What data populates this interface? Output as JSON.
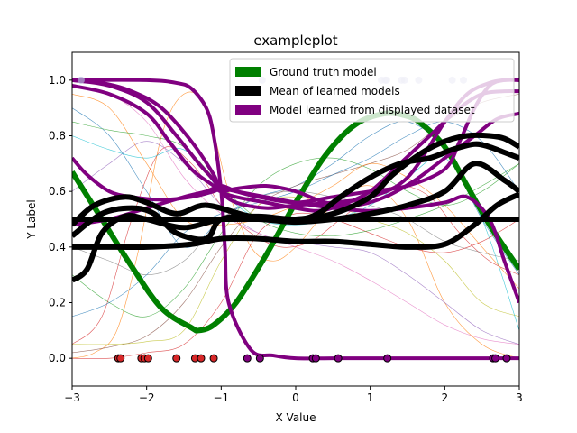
{
  "chart_data": {
    "type": "line",
    "title": "exampleplot",
    "xlabel": "X Value",
    "ylabel": "Y Label",
    "xlim": [
      -3,
      3
    ],
    "ylim": [
      -0.1,
      1.1
    ],
    "x_ticks": [
      -3,
      -2,
      -1,
      0,
      1,
      2,
      3
    ],
    "y_ticks": [
      0.0,
      0.2,
      0.4,
      0.6,
      0.8,
      1.0
    ],
    "x_tick_labels": [
      "−3",
      "−2",
      "−1",
      "0",
      "1",
      "2",
      "3"
    ],
    "y_tick_labels": [
      "0.0",
      "0.2",
      "0.4",
      "0.6",
      "0.8",
      "1.0"
    ],
    "grid": false,
    "legend": {
      "placement": "top-right",
      "entries": [
        {
          "label": "Ground truth model",
          "color": "#008000"
        },
        {
          "label": "Mean of learned models",
          "color": "#000000"
        },
        {
          "label": "Model learned from displayed dataset",
          "color": "#800080"
        }
      ]
    },
    "ground_truth_series": {
      "color": "#008000",
      "x": [
        -3.0,
        -2.6,
        -2.2,
        -1.8,
        -1.4,
        -1.3,
        -1.1,
        -0.8,
        -0.4,
        0.0,
        0.4,
        0.8,
        1.2,
        1.5,
        1.7,
        2.0,
        2.3,
        2.6,
        3.0
      ],
      "y": [
        0.67,
        0.5,
        0.33,
        0.18,
        0.11,
        0.1,
        0.12,
        0.2,
        0.37,
        0.56,
        0.73,
        0.84,
        0.88,
        0.87,
        0.84,
        0.76,
        0.62,
        0.48,
        0.32
      ]
    },
    "mean_series": [
      {
        "color": "#000000",
        "x": [
          -3.0,
          -2.0,
          -1.0,
          0.0,
          1.0,
          2.0,
          3.0
        ],
        "y": [
          0.5,
          0.5,
          0.5,
          0.5,
          0.5,
          0.5,
          0.5
        ]
      },
      {
        "color": "#000000",
        "x": [
          -3.0,
          -2.8,
          -2.5,
          -2.0,
          -1.4,
          -1.0,
          -0.5,
          0.0,
          0.5,
          1.0,
          1.5,
          2.0,
          2.4,
          2.7,
          3.0
        ],
        "y": [
          0.4,
          0.4,
          0.4,
          0.4,
          0.41,
          0.43,
          0.43,
          0.42,
          0.42,
          0.41,
          0.4,
          0.41,
          0.48,
          0.55,
          0.59
        ]
      },
      {
        "color": "#000000",
        "x": [
          -3.0,
          -2.8,
          -2.6,
          -2.3,
          -2.0,
          -1.5,
          -1.0,
          -0.5,
          0.0,
          0.5,
          1.0,
          1.5,
          2.0,
          2.4,
          2.8,
          3.0
        ],
        "y": [
          0.28,
          0.32,
          0.45,
          0.51,
          0.5,
          0.47,
          0.5,
          0.5,
          0.49,
          0.5,
          0.52,
          0.55,
          0.6,
          0.7,
          0.64,
          0.6
        ]
      },
      {
        "color": "#000000",
        "x": [
          -3.0,
          -2.7,
          -2.3,
          -2.0,
          -1.6,
          -1.2,
          -0.6,
          0.0,
          0.3,
          0.6,
          1.0,
          1.4,
          1.8,
          2.1,
          2.4,
          2.6,
          2.8,
          3.0
        ],
        "y": [
          0.48,
          0.55,
          0.58,
          0.56,
          0.52,
          0.55,
          0.51,
          0.5,
          0.52,
          0.58,
          0.65,
          0.7,
          0.72,
          0.75,
          0.77,
          0.76,
          0.74,
          0.72
        ]
      },
      {
        "color": "#000000",
        "x": [
          -3.0,
          -2.6,
          -2.2,
          -1.9,
          -1.6,
          -1.2,
          -1.0,
          -0.5,
          0.0,
          0.5,
          1.0,
          1.3,
          1.7,
          2.0,
          2.3,
          2.6,
          2.8,
          3.0
        ],
        "y": [
          0.44,
          0.52,
          0.54,
          0.52,
          0.45,
          0.43,
          0.5,
          0.51,
          0.5,
          0.52,
          0.58,
          0.66,
          0.74,
          0.78,
          0.8,
          0.8,
          0.79,
          0.76
        ]
      }
    ],
    "learned_series": [
      {
        "color": "#800080",
        "x": [
          -3.0,
          -2.0,
          -1.6,
          -1.4,
          -1.2,
          -1.1,
          -1.0,
          -0.95,
          -0.9,
          -0.6,
          -0.3,
          0.0,
          0.5,
          1.0,
          2.0,
          3.0
        ],
        "y": [
          1.0,
          1.0,
          0.99,
          0.97,
          0.9,
          0.8,
          0.6,
          0.4,
          0.2,
          0.03,
          0.01,
          0.0,
          0.0,
          0.0,
          0.0,
          0.0
        ]
      },
      {
        "color": "#800080",
        "x": [
          -3.0,
          -2.5,
          -2.0,
          -1.7,
          -1.4,
          -1.1,
          -1.0,
          -0.8,
          -0.4,
          0.0,
          0.4,
          0.8,
          1.2,
          1.6,
          2.0,
          2.4,
          2.7,
          3.0
        ],
        "y": [
          0.98,
          0.95,
          0.88,
          0.78,
          0.68,
          0.62,
          0.6,
          0.61,
          0.62,
          0.6,
          0.56,
          0.55,
          0.58,
          0.64,
          0.72,
          0.8,
          0.86,
          0.88
        ]
      },
      {
        "color": "#800080",
        "x": [
          -3.0,
          -2.5,
          -2.0,
          -1.6,
          -1.3,
          -1.1,
          -1.0,
          -0.8,
          -0.4,
          0.0,
          0.3,
          0.6,
          1.0,
          1.4,
          1.8,
          2.2,
          2.5,
          2.8,
          3.0
        ],
        "y": [
          1.0,
          0.98,
          0.92,
          0.8,
          0.7,
          0.64,
          0.6,
          0.58,
          0.56,
          0.54,
          0.53,
          0.55,
          0.6,
          0.7,
          0.8,
          0.9,
          0.95,
          0.96,
          0.96
        ]
      },
      {
        "color": "#800080",
        "x": [
          -3.0,
          -2.6,
          -2.2,
          -1.8,
          -1.4,
          -1.1,
          -1.0,
          -0.8,
          -0.4,
          0.0,
          0.5,
          1.0,
          1.5,
          2.0,
          2.3,
          2.6,
          2.8,
          3.0
        ],
        "y": [
          1.0,
          0.99,
          0.96,
          0.9,
          0.78,
          0.66,
          0.6,
          0.56,
          0.54,
          0.55,
          0.56,
          0.58,
          0.65,
          0.85,
          0.95,
          0.99,
          1.0,
          1.0
        ]
      },
      {
        "color": "#800080",
        "x": [
          -3.0,
          -2.8,
          -2.5,
          -2.2,
          -1.8,
          -1.4,
          -1.1,
          -1.0,
          -0.8,
          -0.4,
          0.0,
          0.5,
          1.0,
          1.5,
          2.0,
          2.3,
          2.6,
          2.8,
          3.0
        ],
        "y": [
          0.72,
          0.66,
          0.6,
          0.58,
          0.57,
          0.58,
          0.6,
          0.61,
          0.6,
          0.58,
          0.56,
          0.54,
          0.53,
          0.54,
          0.56,
          0.58,
          0.5,
          0.35,
          0.2
        ]
      },
      {
        "color": "#800080",
        "x": [
          -3.0,
          -2.5,
          -2.0,
          -1.5,
          -1.2,
          -1.0,
          -0.8,
          -0.5,
          0.0,
          0.5,
          1.0,
          1.5,
          2.0,
          2.2,
          2.4,
          2.6,
          2.8,
          3.0
        ],
        "y": [
          0.48,
          0.5,
          0.54,
          0.58,
          0.6,
          0.62,
          0.6,
          0.58,
          0.56,
          0.58,
          0.6,
          0.62,
          0.68,
          0.78,
          0.9,
          0.98,
          1.0,
          1.0
        ]
      }
    ],
    "thin_series": [
      {
        "color": "#1f77b4",
        "x": [
          -3.0,
          -2.5,
          -2.0,
          -1.5,
          -1.0,
          -0.5,
          0.0,
          0.5,
          1.0,
          1.5,
          2.0,
          2.5,
          3.0
        ],
        "y": [
          0.9,
          0.8,
          0.6,
          0.4,
          0.5,
          0.58,
          0.62,
          0.7,
          0.8,
          0.85,
          0.75,
          0.5,
          0.3
        ]
      },
      {
        "color": "#ff7f0e",
        "x": [
          -3.0,
          -2.7,
          -2.4,
          -2.1,
          -1.8,
          -1.5,
          -1.2,
          -0.9,
          -0.6,
          -0.3,
          0.0,
          0.5,
          1.0,
          1.5,
          2.0,
          2.5,
          3.0
        ],
        "y": [
          0.0,
          0.02,
          0.1,
          0.4,
          0.8,
          0.95,
          0.9,
          0.6,
          0.4,
          0.35,
          0.4,
          0.55,
          0.62,
          0.5,
          0.2,
          0.05,
          0.0
        ]
      },
      {
        "color": "#2ca02c",
        "x": [
          -3.0,
          -2.5,
          -2.0,
          -1.5,
          -1.0,
          -0.5,
          0.0,
          0.5,
          1.0,
          1.5,
          2.0,
          2.5,
          3.0
        ],
        "y": [
          0.3,
          0.2,
          0.15,
          0.25,
          0.45,
          0.62,
          0.7,
          0.72,
          0.68,
          0.6,
          0.55,
          0.6,
          0.7
        ]
      },
      {
        "color": "#d62728",
        "x": [
          -3.0,
          -2.6,
          -2.2,
          -1.8,
          -1.4,
          -1.0,
          -0.6,
          -0.2,
          0.2,
          0.6,
          1.0,
          1.4,
          1.8,
          2.2,
          2.6,
          3.0
        ],
        "y": [
          0.05,
          0.15,
          0.5,
          0.75,
          0.7,
          0.55,
          0.45,
          0.4,
          0.42,
          0.5,
          0.58,
          0.62,
          0.58,
          0.45,
          0.35,
          0.3
        ]
      },
      {
        "color": "#9467bd",
        "x": [
          -3.0,
          -2.5,
          -2.0,
          -1.5,
          -1.0,
          -0.5,
          0.0,
          0.5,
          1.0,
          1.5,
          2.0,
          2.5,
          3.0
        ],
        "y": [
          0.6,
          0.7,
          0.78,
          0.7,
          0.55,
          0.45,
          0.42,
          0.4,
          0.38,
          0.3,
          0.2,
          0.1,
          0.05
        ]
      },
      {
        "color": "#8c564b",
        "x": [
          -3.0,
          -2.5,
          -2.0,
          -1.5,
          -1.0,
          -0.5,
          0.0,
          0.5,
          1.0,
          1.5,
          2.0,
          2.5,
          3.0
        ],
        "y": [
          0.02,
          0.04,
          0.08,
          0.2,
          0.4,
          0.55,
          0.62,
          0.66,
          0.7,
          0.75,
          0.85,
          0.92,
          0.95
        ]
      },
      {
        "color": "#e377c2",
        "x": [
          -3.0,
          -2.5,
          -2.0,
          -1.5,
          -1.0,
          -0.5,
          0.0,
          0.5,
          1.0,
          1.5,
          2.0,
          2.5,
          3.0
        ],
        "y": [
          0.98,
          0.95,
          0.85,
          0.65,
          0.52,
          0.45,
          0.4,
          0.35,
          0.28,
          0.2,
          0.12,
          0.07,
          0.05
        ]
      },
      {
        "color": "#7f7f7f",
        "x": [
          -3.0,
          -2.5,
          -2.0,
          -1.5,
          -1.0,
          -0.5,
          0.0,
          0.5,
          1.0,
          1.5,
          2.0,
          2.5,
          3.0
        ],
        "y": [
          0.4,
          0.35,
          0.3,
          0.35,
          0.5,
          0.58,
          0.6,
          0.58,
          0.55,
          0.5,
          0.42,
          0.38,
          0.35
        ]
      },
      {
        "color": "#bcbd22",
        "x": [
          -3.0,
          -2.5,
          -2.0,
          -1.5,
          -1.0,
          -0.5,
          0.0,
          0.5,
          1.0,
          1.5,
          2.0,
          2.5,
          3.0
        ],
        "y": [
          0.05,
          0.05,
          0.06,
          0.1,
          0.35,
          0.55,
          0.58,
          0.55,
          0.5,
          0.45,
          0.35,
          0.2,
          0.15
        ]
      },
      {
        "color": "#17becf",
        "x": [
          -3.0,
          -2.5,
          -2.0,
          -1.5,
          -1.0,
          -0.5,
          0.0,
          0.5,
          1.0,
          1.5,
          2.0,
          2.5,
          3.0
        ],
        "y": [
          0.8,
          0.75,
          0.72,
          0.75,
          0.6,
          0.5,
          0.48,
          0.5,
          0.55,
          0.65,
          0.72,
          0.5,
          0.1
        ]
      },
      {
        "color": "#ff7f0e",
        "x": [
          -3.0,
          -2.5,
          -2.0,
          -1.5,
          -1.0,
          -0.5,
          0.0,
          0.5,
          1.0,
          1.5,
          2.0,
          2.5,
          3.0
        ],
        "y": [
          0.95,
          0.9,
          0.7,
          0.5,
          0.48,
          0.5,
          0.55,
          0.62,
          0.7,
          0.65,
          0.55,
          0.4,
          0.25
        ]
      },
      {
        "color": "#d62728",
        "x": [
          -3.0,
          -2.5,
          -2.0,
          -1.5,
          -1.0,
          -0.5,
          0.0,
          0.5,
          1.0,
          1.5,
          2.0,
          2.5,
          3.0
        ],
        "y": [
          0.0,
          0.0,
          0.02,
          0.05,
          0.2,
          0.45,
          0.52,
          0.5,
          0.45,
          0.4,
          0.38,
          0.42,
          0.5
        ]
      },
      {
        "color": "#2ca02c",
        "x": [
          -3.0,
          -2.5,
          -2.0,
          -1.5,
          -1.0,
          -0.5,
          0.0,
          0.5,
          1.0,
          1.5,
          2.0,
          2.5,
          3.0
        ],
        "y": [
          0.85,
          0.82,
          0.8,
          0.76,
          0.62,
          0.5,
          0.45,
          0.44,
          0.46,
          0.5,
          0.55,
          0.62,
          0.7
        ]
      },
      {
        "color": "#1f77b4",
        "x": [
          -3.0,
          -2.5,
          -2.0,
          -1.5,
          -1.0,
          -0.5,
          0.0,
          0.5,
          1.0,
          1.5,
          2.0,
          2.5,
          3.0
        ],
        "y": [
          0.15,
          0.2,
          0.3,
          0.45,
          0.52,
          0.56,
          0.6,
          0.66,
          0.72,
          0.8,
          0.85,
          0.78,
          0.6
        ]
      }
    ],
    "data_points": {
      "red_at_zero": {
        "color": "#d62728",
        "x": [
          -2.38,
          -2.35,
          -2.07,
          -2.03,
          -1.98,
          -1.6,
          -1.35,
          -1.27,
          -1.1
        ]
      },
      "purple_at_zero": {
        "color": "#800080",
        "x": [
          -0.65,
          -0.48,
          0.23,
          0.27,
          0.57,
          1.23,
          2.65,
          2.68,
          2.83
        ]
      },
      "at_one": {
        "color": "#b0b0d8",
        "x": [
          -2.88,
          -0.45,
          1.15,
          1.2,
          1.22,
          1.42,
          1.46,
          1.65,
          2.1,
          2.25
        ]
      }
    }
  }
}
